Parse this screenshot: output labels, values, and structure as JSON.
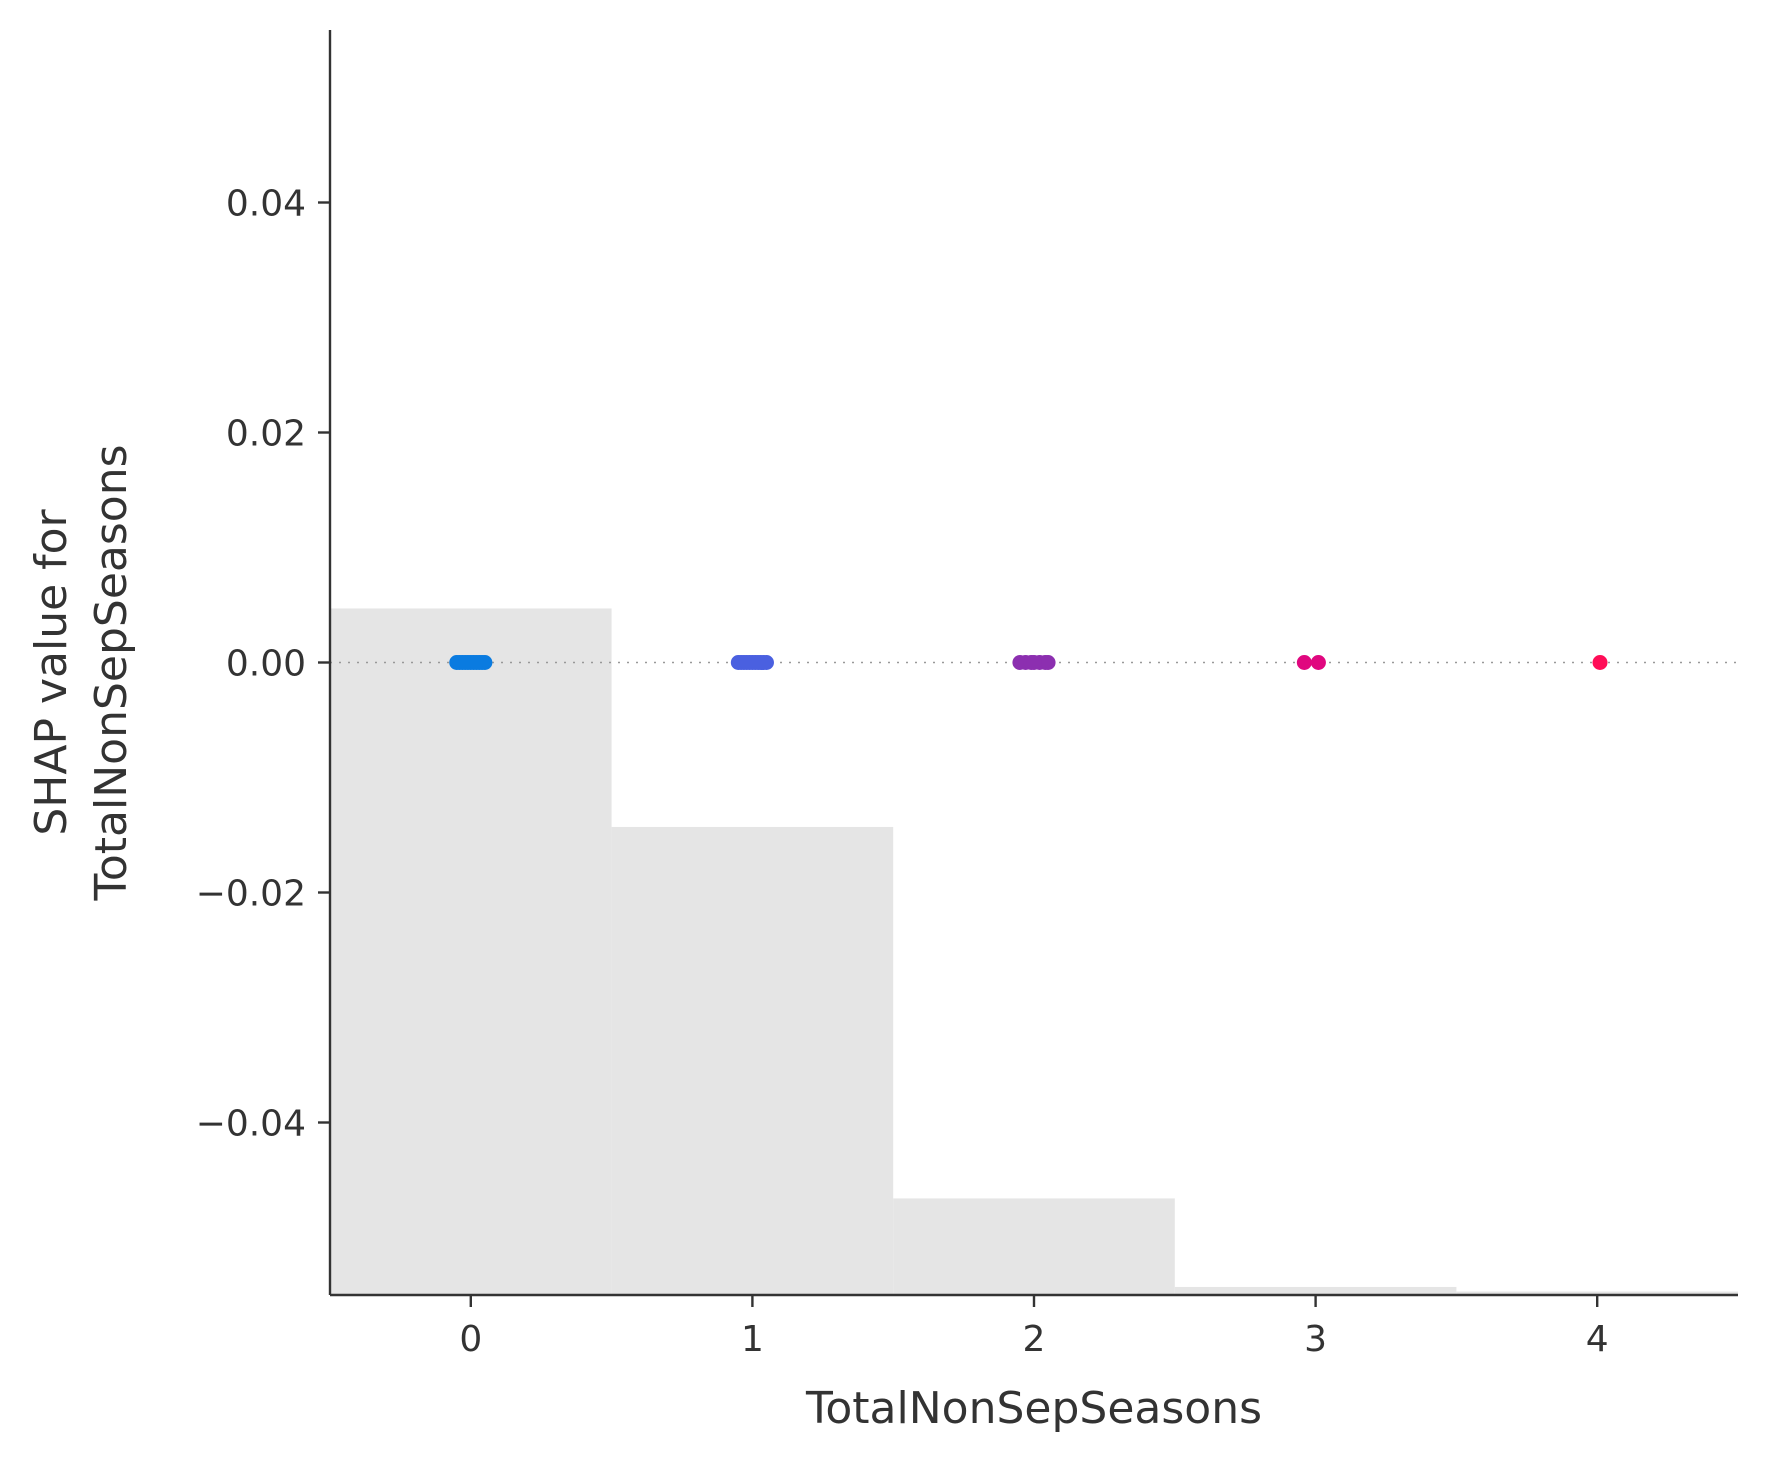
{
  "chart_data": {
    "type": "scatter",
    "title": "",
    "xlabel": "TotalNonSepSeasons",
    "ylabel_lines": [
      "SHAP value for",
      "TotalNonSepSeasons"
    ],
    "xlim": [
      -0.5,
      4.5
    ],
    "ylim": [
      -0.055,
      0.055
    ],
    "x_ticks": [
      {
        "value": 0,
        "label": "0"
      },
      {
        "value": 1,
        "label": "1"
      },
      {
        "value": 2,
        "label": "2"
      },
      {
        "value": 3,
        "label": "3"
      },
      {
        "value": 4,
        "label": "4"
      }
    ],
    "y_ticks": [
      {
        "value": 0.04,
        "label": "0.04"
      },
      {
        "value": 0.02,
        "label": "0.02"
      },
      {
        "value": 0.0,
        "label": "0.00"
      },
      {
        "value": -0.02,
        "label": "−0.02"
      },
      {
        "value": -0.04,
        "label": "−0.04"
      }
    ],
    "histogram": {
      "color": "#e5e5e5",
      "bins": [
        {
          "x0": -0.5,
          "x1": 0.5,
          "top": 0.0047
        },
        {
          "x0": 0.5,
          "x1": 1.5,
          "top": -0.0143
        },
        {
          "x0": 1.5,
          "x1": 2.5,
          "top": -0.0466
        },
        {
          "x0": 2.5,
          "x1": 3.5,
          "top": -0.0543
        },
        {
          "x0": 3.5,
          "x1": 4.5,
          "top": -0.0547
        }
      ]
    },
    "zero_line": {
      "y": 0,
      "style": "dotted",
      "color": "#999999"
    },
    "series": [
      {
        "color": "#0a7be0",
        "points": [
          [
            -0.05,
            0
          ],
          [
            -0.03,
            0
          ],
          [
            -0.01,
            0
          ],
          [
            0.01,
            0
          ],
          [
            0.03,
            0
          ],
          [
            0.05,
            0
          ],
          [
            -0.04,
            0
          ],
          [
            0.0,
            0
          ],
          [
            0.04,
            0
          ],
          [
            -0.02,
            0
          ],
          [
            0.02,
            0
          ]
        ]
      },
      {
        "color": "#4a60e0",
        "points": [
          [
            0.95,
            0
          ],
          [
            0.97,
            0
          ],
          [
            0.99,
            0
          ],
          [
            1.01,
            0
          ],
          [
            1.03,
            0
          ],
          [
            1.05,
            0
          ],
          [
            0.96,
            0
          ],
          [
            1.0,
            0
          ],
          [
            1.04,
            0
          ],
          [
            0.98,
            0
          ],
          [
            1.02,
            0
          ]
        ]
      },
      {
        "color": "#8c2fb0",
        "points": [
          [
            1.95,
            0
          ],
          [
            1.97,
            0
          ],
          [
            1.99,
            0
          ],
          [
            2.02,
            0
          ],
          [
            2.04,
            0
          ],
          [
            2.05,
            0
          ],
          [
            2.0,
            0
          ]
        ]
      },
      {
        "color": "#e0077f",
        "points": [
          [
            2.96,
            0
          ],
          [
            3.01,
            0
          ]
        ]
      },
      {
        "color": "#ff0d57",
        "points": [
          [
            4.01,
            0
          ]
        ]
      }
    ]
  }
}
